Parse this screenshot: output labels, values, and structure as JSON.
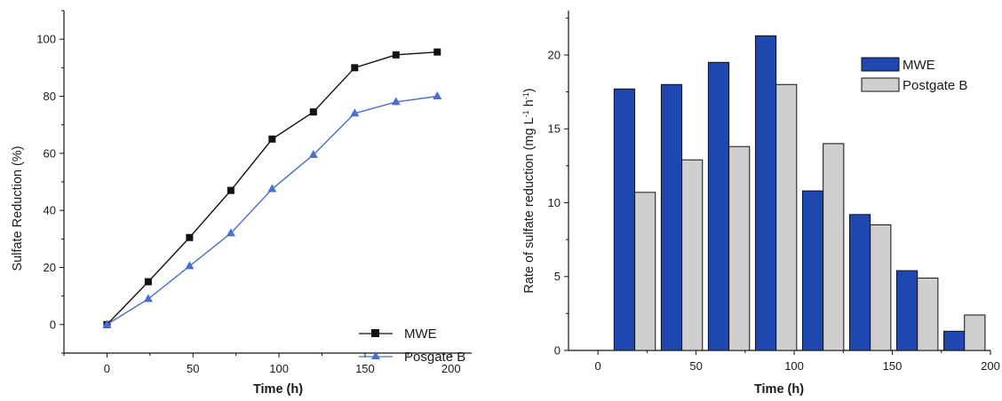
{
  "chart_data": [
    {
      "type": "line",
      "xlabel": "Time (h)",
      "ylabel": "Sulfate Reduction (%)",
      "xlim": [
        -25,
        212
      ],
      "ylim": [
        -10,
        110
      ],
      "xticks": [
        "0",
        "50",
        "100",
        "150",
        "200"
      ],
      "yticks": [
        "0",
        "20",
        "40",
        "60",
        "80",
        "100"
      ],
      "legend_position": "bottom-right",
      "x": [
        0,
        24,
        48,
        72,
        96,
        120,
        144,
        168,
        192
      ],
      "series": [
        {
          "name": "MWE",
          "marker": "square",
          "color": "#111111",
          "values": [
            0,
            15,
            30.5,
            47,
            65,
            74.5,
            90,
            94.5,
            95.5
          ]
        },
        {
          "name": "Posgate B",
          "marker": "triangle",
          "color": "#4a6fd0",
          "values": [
            0,
            9,
            20.5,
            32,
            47.5,
            59.5,
            74,
            78,
            80
          ]
        }
      ]
    },
    {
      "type": "bar",
      "xlabel": "Time (h)",
      "ylabel": "Rate of sulfate reduction (mg L",
      "ylabel_sup1": "-1",
      "ylabel_mid": " h",
      "ylabel_sup2": "-1",
      "ylabel_end": ")",
      "xlim": [
        -15,
        200
      ],
      "ylim": [
        0,
        23
      ],
      "xticks": [
        "0",
        "50",
        "100",
        "150",
        "200"
      ],
      "yticks": [
        "0",
        "5",
        "10",
        "15",
        "20"
      ],
      "legend_position": "top-right",
      "x": [
        24,
        48,
        72,
        96,
        120,
        144,
        168,
        192
      ],
      "series": [
        {
          "name": "MWE",
          "color": "#1f47b0",
          "values": [
            17.7,
            18,
            19.5,
            21.3,
            10.8,
            9.2,
            5.4,
            1.3
          ]
        },
        {
          "name": "Postgate B",
          "color": "#cfcfcf",
          "values": [
            10.7,
            12.9,
            13.8,
            18,
            14,
            8.5,
            4.9,
            2.4
          ]
        }
      ]
    }
  ]
}
